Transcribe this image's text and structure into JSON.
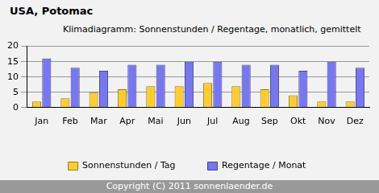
{
  "chart_data": {
    "type": "bar",
    "title": "USA, Potomac",
    "subtitle": "Klimadiagramm: Sonnenstunden / Regentage, monatlich, gemittelt",
    "footer": "Copyright (C) 2011 sonnenlaender.de",
    "categories": [
      "Jan",
      "Feb",
      "Mar",
      "Apr",
      "Mai",
      "Jun",
      "Jul",
      "Aug",
      "Sep",
      "Okt",
      "Nov",
      "Dez"
    ],
    "series": [
      {
        "name": "Sonnenstunden / Tag",
        "color": "#ffcc33",
        "values": [
          2,
          3,
          5,
          6,
          7,
          7,
          8,
          7,
          6,
          4,
          2,
          2
        ]
      },
      {
        "name": "Regentage / Monat",
        "color": "#7777ee",
        "values": [
          16,
          13,
          12,
          14,
          14,
          15,
          15,
          14,
          14,
          12,
          15,
          13
        ]
      }
    ],
    "ylim": [
      0,
      20
    ],
    "yticks": [
      0,
      5,
      10,
      15,
      20
    ],
    "grid": true,
    "legend": "bottom"
  }
}
